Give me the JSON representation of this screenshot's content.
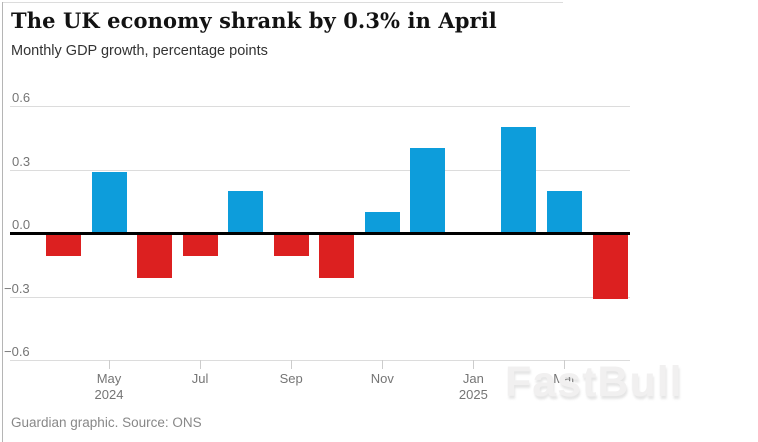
{
  "page": {
    "title": "The UK economy shrank by 0.3% in April",
    "subtitle": "Monthly GDP growth, percentage points",
    "footer": "Guardian graphic. Source: ONS",
    "watermark": "FastBull"
  },
  "chart_data": {
    "type": "bar",
    "title": "The UK economy shrank by 0.3% in April",
    "subtitle": "Monthly GDP growth, percentage points",
    "ylabel": "Monthly GDP growth, percentage points",
    "xlabel": "",
    "source": "ONS",
    "categories": [
      "Apr 2024",
      "May 2024",
      "Jun 2024",
      "Jul 2024",
      "Aug 2024",
      "Sep 2024",
      "Oct 2024",
      "Nov 2024",
      "Dec 2024",
      "Jan 2025",
      "Feb 2025",
      "Mar 2025",
      "Apr 2025"
    ],
    "values": [
      -0.11,
      0.29,
      -0.21,
      -0.11,
      0.2,
      -0.11,
      -0.21,
      0.1,
      0.4,
      0.0,
      0.5,
      0.2,
      -0.31
    ],
    "ylim": [
      -0.6,
      0.6
    ],
    "grid": true,
    "legend": "none",
    "y_ticks": [
      0.6,
      0.3,
      0.0,
      -0.3,
      -0.6
    ],
    "y_tick_labels": [
      "0.6",
      "0.3",
      "0.0",
      "−0.3",
      "−0.6"
    ],
    "x_ticks": [
      {
        "label": "May",
        "sublabel": "2024",
        "index": 1
      },
      {
        "label": "Jul",
        "sublabel": "",
        "index": 3
      },
      {
        "label": "Sep",
        "sublabel": "",
        "index": 5
      },
      {
        "label": "Nov",
        "sublabel": "",
        "index": 7
      },
      {
        "label": "Jan",
        "sublabel": "2025",
        "index": 9
      },
      {
        "label": "Mar",
        "sublabel": "",
        "index": 11
      }
    ],
    "positive_color": "#0d9ddb",
    "negative_color": "#dc2020",
    "zero_line_color": "#000000",
    "gridline_color": "#dcdcdc",
    "axis_text_color": "#757575"
  }
}
